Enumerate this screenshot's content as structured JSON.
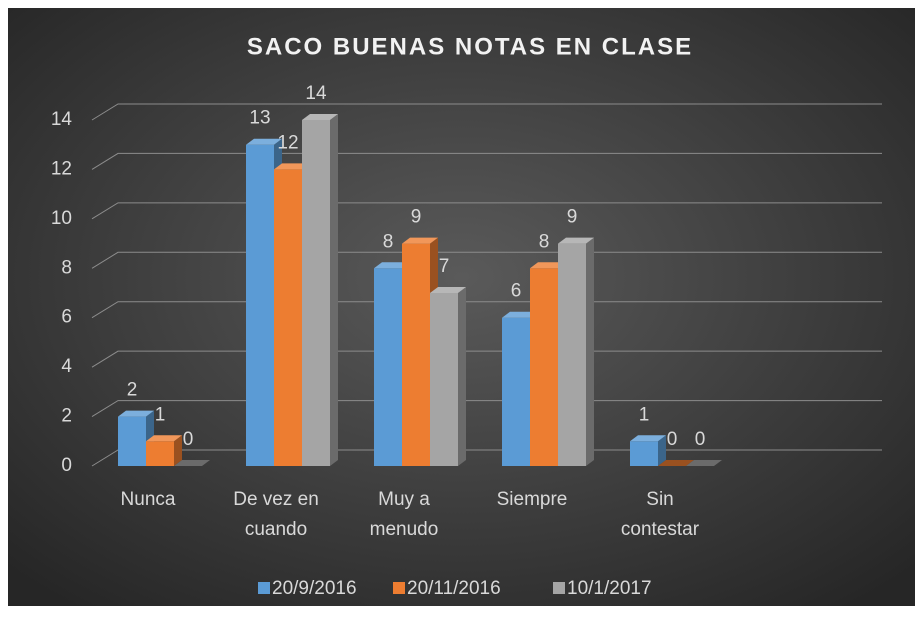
{
  "chart_data": {
    "type": "bar3d",
    "title": "SACO BUENAS NOTAS EN CLASE",
    "categories": [
      "Nunca",
      "De vez en\ncuando",
      "Muy a\nmenudo",
      "Siempre",
      "Sin\ncontestar"
    ],
    "series": [
      {
        "name": "20/9/2016",
        "color": "#5b9bd5",
        "values": [
          2,
          13,
          8,
          6,
          1
        ]
      },
      {
        "name": "20/11/2016",
        "color": "#ed7d31",
        "values": [
          1,
          12,
          9,
          8,
          0
        ]
      },
      {
        "name": "10/1/2017",
        "color": "#a5a5a5",
        "values": [
          0,
          14,
          7,
          9,
          0
        ]
      }
    ],
    "ylim": [
      0,
      14
    ],
    "yticks": [
      0,
      2,
      4,
      6,
      8,
      10,
      12,
      14
    ],
    "grid": true,
    "legend": "bottom"
  }
}
